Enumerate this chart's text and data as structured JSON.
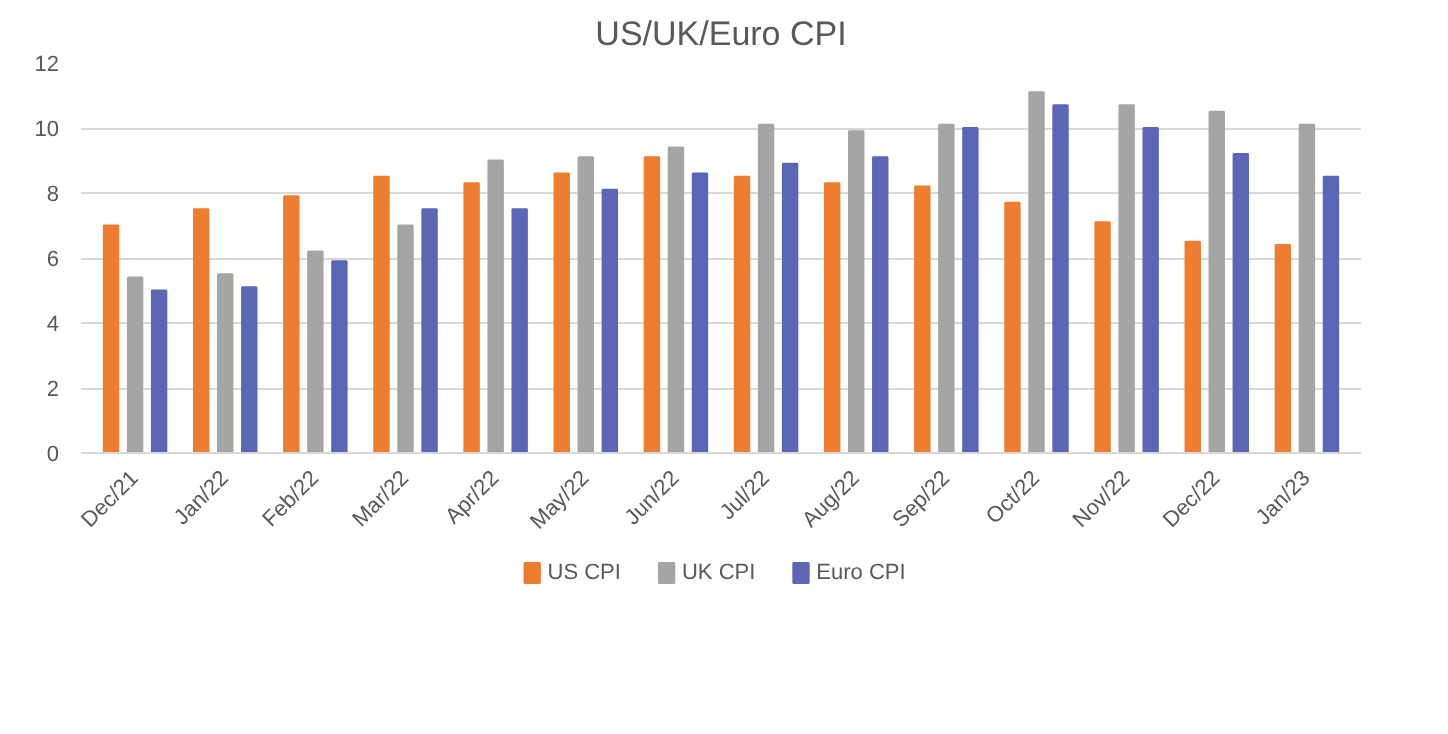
{
  "chart_data": {
    "type": "bar",
    "title": "US/UK/Euro CPI",
    "categories": [
      "Dec/21",
      "Jan/22",
      "Feb/22",
      "Mar/22",
      "Apr/22",
      "May/22",
      "Jun/22",
      "Jul/22",
      "Aug/22",
      "Sep/22",
      "Oct/22",
      "Nov/22",
      "Dec/22",
      "Jan/23"
    ],
    "series": [
      {
        "name": "US CPI",
        "color": "#ed7d31",
        "values": [
          7.0,
          7.5,
          7.9,
          8.5,
          8.3,
          8.6,
          9.1,
          8.5,
          8.3,
          8.2,
          7.7,
          7.1,
          6.5,
          6.4
        ]
      },
      {
        "name": "UK CPI",
        "color": "#a5a5a5",
        "values": [
          5.4,
          5.5,
          6.2,
          7.0,
          9.0,
          9.1,
          9.4,
          10.1,
          9.9,
          10.1,
          11.1,
          10.7,
          10.5,
          10.1
        ]
      },
      {
        "name": "Euro CPI",
        "color": "#5b66b5",
        "values": [
          5.0,
          5.1,
          5.9,
          7.5,
          7.5,
          8.1,
          8.6,
          8.9,
          9.1,
          10.0,
          10.7,
          10.0,
          9.2,
          8.5
        ]
      }
    ],
    "ylim": [
      0,
      12
    ],
    "yticks": [
      0,
      2,
      4,
      6,
      8,
      10,
      12
    ],
    "grid": "y",
    "legend": "bottom"
  }
}
